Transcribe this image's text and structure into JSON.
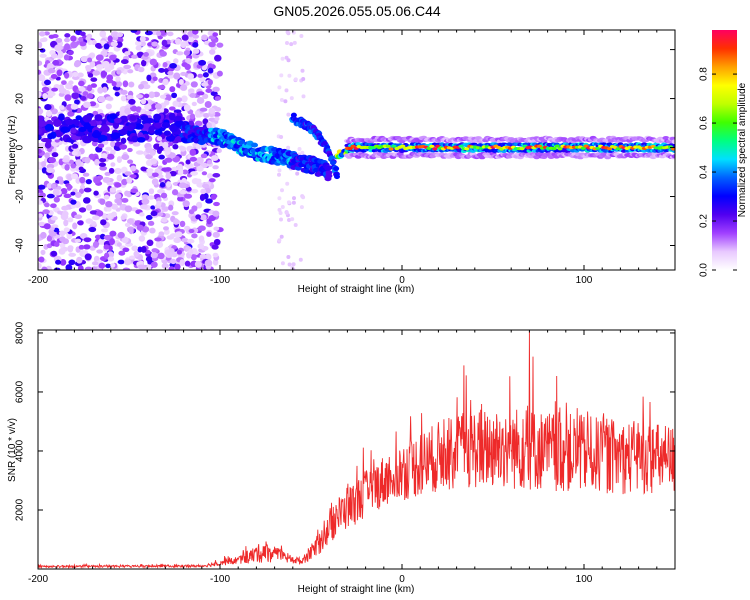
{
  "title": "GN05.2026.055.05.06.C44",
  "chart_data": [
    {
      "type": "heatmap",
      "name": "spectrogram",
      "xlabel": "Height of straight line (km)",
      "ylabel": "Frequency (Hz)",
      "xlim": [
        -200,
        150
      ],
      "ylim": [
        -50,
        48
      ],
      "xticks": [
        -200,
        -100,
        0,
        100
      ],
      "xtick_labels": [
        "-200",
        "-100",
        "0",
        "100"
      ],
      "yticks": [
        -40,
        -20,
        0,
        20,
        40
      ],
      "ytick_labels": [
        "-40",
        "-20",
        "0",
        "20",
        "40"
      ],
      "colorbar": {
        "label": "Normalized spectral amplitude",
        "range": [
          0,
          0.98
        ],
        "ticks": [
          0.0,
          0.2,
          0.4,
          0.6,
          0.8
        ],
        "tick_labels": [
          "0.0",
          "0.2",
          "0.4",
          "0.6",
          "0.8"
        ],
        "colors": [
          "#ffffff",
          "#e8c8ff",
          "#a040ff",
          "#5000f0",
          "#0000ff",
          "#0060ff",
          "#00e0ff",
          "#00ff80",
          "#40ff00",
          "#c0ff00",
          "#ffff00",
          "#ffa000",
          "#ff3000",
          "#ff0060"
        ]
      },
      "features": [
        {
          "description": "diffuse noise",
          "x_range": [
            -200,
            -100
          ],
          "freq_range": [
            -50,
            48
          ],
          "amplitude": 0.05
        },
        {
          "description": "drifting tone",
          "x": [
            -120,
            -100,
            -80,
            -60,
            -50,
            -40
          ],
          "freq": [
            6,
            4,
            -2,
            -5,
            -7,
            -10
          ],
          "amplitude": 0.35
        },
        {
          "description": "secondary branch",
          "x": [
            -60,
            -50,
            -45,
            -40,
            -35
          ],
          "freq": [
            12,
            8,
            4,
            -2,
            -12
          ],
          "amplitude": 0.3
        },
        {
          "description": "steady tone",
          "x_range": [
            -30,
            150
          ],
          "freq": 0,
          "amplitude": 0.85
        }
      ]
    },
    {
      "type": "line",
      "name": "snr",
      "xlabel": "Height of straight line (km)",
      "ylabel": "SNR (10 * v/v)",
      "xlim": [
        -200,
        150
      ],
      "ylim": [
        0,
        8100
      ],
      "xticks": [
        -200,
        -100,
        0,
        100
      ],
      "xtick_labels": [
        "-200",
        "-100",
        "0",
        "100"
      ],
      "yticks": [
        2000,
        4000,
        6000,
        8000
      ],
      "ytick_labels": [
        "2000",
        "4000",
        "6000",
        "8000"
      ],
      "color": "#ee2a2a",
      "envelope_x": [
        -200,
        -110,
        -90,
        -75,
        -65,
        -55,
        -45,
        -35,
        -25,
        -10,
        0,
        20,
        40,
        60,
        80,
        100,
        120,
        150
      ],
      "envelope_mean": [
        80,
        100,
        300,
        600,
        400,
        250,
        900,
        1800,
        2300,
        3000,
        3300,
        3800,
        4100,
        4100,
        4000,
        3900,
        3800,
        3700
      ],
      "envelope_spread": [
        60,
        80,
        250,
        700,
        350,
        200,
        700,
        1200,
        1400,
        1600,
        1800,
        2200,
        2500,
        2600,
        2500,
        2400,
        2300,
        2200
      ],
      "peak_annotations": [
        {
          "x": 70,
          "value": 8050
        },
        {
          "x": 34,
          "value": 6900
        },
        {
          "x": 72,
          "value": 7200
        }
      ]
    }
  ]
}
